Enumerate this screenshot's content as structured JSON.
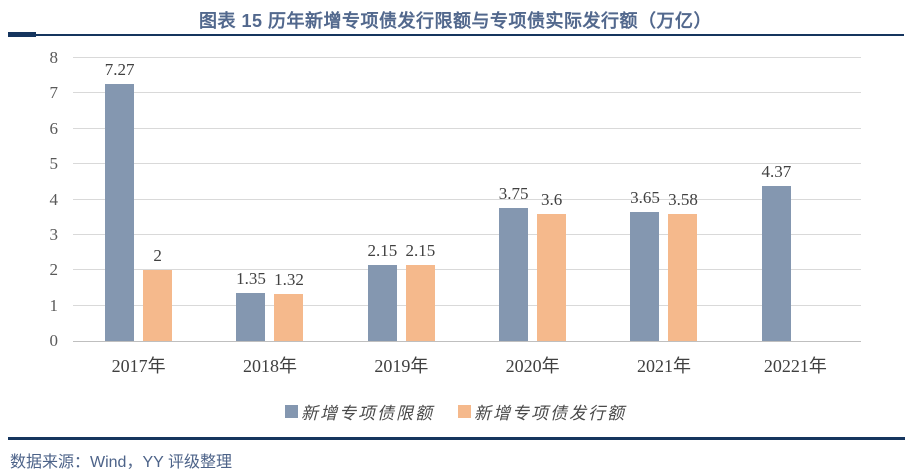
{
  "header": {
    "title": "图表 15 历年新增专项债发行限额与专项债实际发行额（万亿）"
  },
  "footer": {
    "source": "数据来源：Wind，YY 评级整理"
  },
  "colors": {
    "title_text": "#52688D",
    "rule_navy": "#15355E",
    "series_limit_blue": "#8497B0",
    "series_issue_orange": "#F5B98C",
    "gridline": "#D9D9D9",
    "axis_line": "#BFBFBF",
    "tick_text": "#595959",
    "label_text": "#404040",
    "source_text": "#4D6389"
  },
  "chart_data": {
    "type": "bar",
    "title": "图表 15 历年新增专项债发行限额与专项债实际发行额（万亿）",
    "categories": [
      "2017年",
      "2018年",
      "2019年",
      "2020年",
      "2021年",
      "20221年"
    ],
    "series": [
      {
        "name": "新增专项债限额",
        "color": "#8497B0",
        "values": [
          7.27,
          1.35,
          2.15,
          3.75,
          3.65,
          4.37
        ],
        "labels": [
          "7.27",
          "1.35",
          "2.15",
          "3.75",
          "3.65",
          "4.37"
        ]
      },
      {
        "name": "新增专项债发行额",
        "color": "#F5B98C",
        "values": [
          2,
          1.32,
          2.15,
          3.6,
          3.58,
          null
        ],
        "labels": [
          "2",
          "1.32",
          "2.15",
          "3.6",
          "3.58",
          null
        ]
      }
    ],
    "xlabel": "",
    "ylabel": "",
    "ylim": [
      0,
      8
    ],
    "yticks": [
      0,
      1,
      2,
      3,
      4,
      5,
      6,
      7,
      8
    ],
    "grid": true,
    "legend_position": "bottom"
  }
}
